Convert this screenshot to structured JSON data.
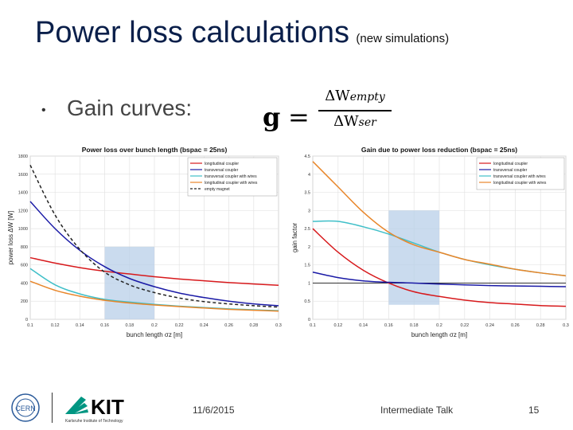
{
  "slide": {
    "title": "Power loss calculations",
    "subtitle": "(new simulations)",
    "bullet": "•",
    "gain_label": "Gain curves:",
    "formula": {
      "lhs": "g",
      "eq": "=",
      "numerator": "ΔWempty",
      "denominator": "ΔWser"
    },
    "footer": {
      "date": "11/6/2015",
      "talk": "Intermediate Talk",
      "page": "15",
      "kit_text": "Karlsruhe Institute of Technology"
    }
  },
  "colors": {
    "red": "#d7191c",
    "blue": "#1a1aa6",
    "cyan": "#3fbfc8",
    "orange": "#e8862a",
    "dashed": "#222222",
    "highlight": "#b8cfe8",
    "title": "#0a1f4a"
  },
  "chart_data": [
    {
      "type": "line",
      "title": "Power loss over bunch length (bspac = 25ns)",
      "xlabel": "bunch length σz [m]",
      "ylabel": "power loss ΔW [W]",
      "xlim": [
        0.1,
        0.3
      ],
      "ylim": [
        0,
        1800
      ],
      "xticks": [
        "0.1",
        "0.12",
        "0.14",
        "0.16",
        "0.18",
        "0.2",
        "0.22",
        "0.24",
        "0.26",
        "0.28",
        "0.3"
      ],
      "yticks": [
        "0",
        "200",
        "400",
        "600",
        "800",
        "1000",
        "1200",
        "1400",
        "1600",
        "1800"
      ],
      "grid": true,
      "legend_position": "top-right",
      "highlight": {
        "x": [
          0.16,
          0.2
        ],
        "y": [
          0,
          800
        ]
      },
      "x": [
        0.1,
        0.12,
        0.14,
        0.16,
        0.18,
        0.2,
        0.22,
        0.24,
        0.26,
        0.28,
        0.3
      ],
      "series": [
        {
          "name": "longitudinal coupler",
          "color": "red",
          "dash": false,
          "values": [
            680,
            620,
            570,
            530,
            500,
            470,
            445,
            425,
            405,
            390,
            375
          ]
        },
        {
          "name": "transversal coupler",
          "color": "blue",
          "dash": false,
          "values": [
            1300,
            1000,
            760,
            580,
            450,
            360,
            290,
            240,
            200,
            170,
            150
          ]
        },
        {
          "name": "transversal coupler with wires",
          "color": "cyan",
          "dash": false,
          "values": [
            560,
            380,
            280,
            220,
            190,
            165,
            145,
            130,
            115,
            105,
            95
          ]
        },
        {
          "name": "longitudinal coupler with wires",
          "color": "orange",
          "dash": false,
          "values": [
            420,
            320,
            255,
            210,
            180,
            158,
            140,
            125,
            110,
            100,
            90
          ]
        },
        {
          "name": "empty magnet",
          "color": "dashed",
          "dash": true,
          "values": [
            1700,
            1150,
            770,
            520,
            380,
            295,
            235,
            195,
            170,
            150,
            135
          ]
        }
      ]
    },
    {
      "type": "line",
      "title": "Gain due to power loss reduction (bspac = 25ns)",
      "xlabel": "bunch length σz [m]",
      "ylabel": "gain factor",
      "xlim": [
        0.1,
        0.3
      ],
      "ylim": [
        0,
        4.5
      ],
      "xticks": [
        "0.1",
        "0.12",
        "0.14",
        "0.16",
        "0.18",
        "0.2",
        "0.22",
        "0.24",
        "0.26",
        "0.28",
        "0.3"
      ],
      "yticks": [
        "0",
        "0.5",
        "1",
        "1.5",
        "2",
        "2.5",
        "3",
        "3.5",
        "4",
        "4.5"
      ],
      "grid": true,
      "legend_position": "top-right",
      "highlight": {
        "x": [
          0.16,
          0.2
        ],
        "y": [
          0.4,
          3.0
        ]
      },
      "reference_line": 1,
      "x": [
        0.1,
        0.12,
        0.14,
        0.16,
        0.18,
        0.2,
        0.22,
        0.24,
        0.26,
        0.28,
        0.3
      ],
      "series": [
        {
          "name": "longitudinal coupler",
          "color": "red",
          "dash": false,
          "values": [
            2.5,
            1.85,
            1.35,
            1.0,
            0.76,
            0.63,
            0.53,
            0.46,
            0.42,
            0.38,
            0.36
          ]
        },
        {
          "name": "transversal coupler",
          "color": "blue",
          "dash": false,
          "values": [
            1.3,
            1.15,
            1.06,
            1.02,
            1.0,
            0.97,
            0.95,
            0.93,
            0.92,
            0.91,
            0.9
          ]
        },
        {
          "name": "transversal coupler with wires",
          "color": "cyan",
          "dash": false,
          "values": [
            2.7,
            2.7,
            2.55,
            2.35,
            2.1,
            1.85,
            1.65,
            1.5,
            1.38,
            1.28,
            1.2
          ]
        },
        {
          "name": "longitudinal coupler with wires",
          "color": "orange",
          "dash": false,
          "values": [
            4.35,
            3.65,
            2.95,
            2.4,
            2.05,
            1.85,
            1.65,
            1.52,
            1.38,
            1.28,
            1.2
          ]
        }
      ]
    }
  ]
}
